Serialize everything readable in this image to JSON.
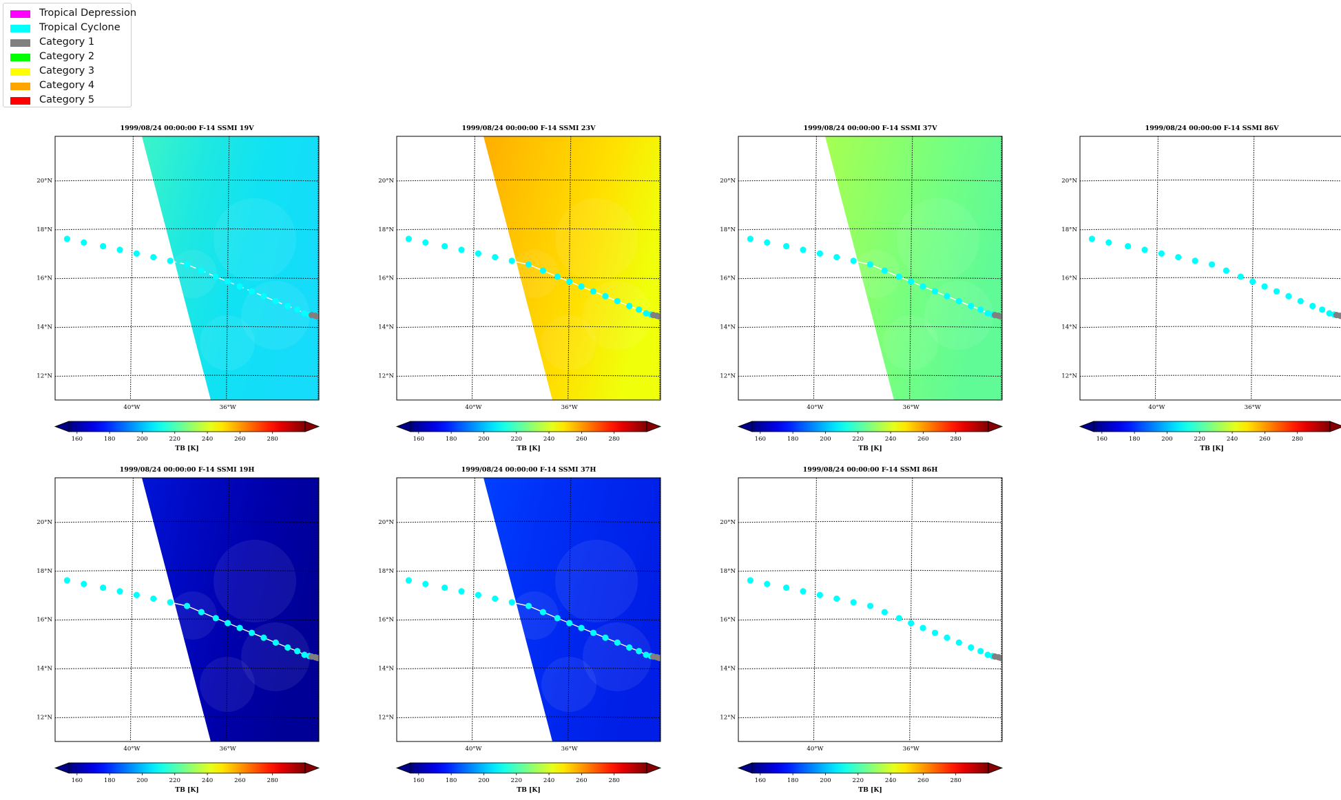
{
  "legend": {
    "items": [
      {
        "label": "Tropical Depression",
        "color": "#ff00ff"
      },
      {
        "label": "Tropical Cyclone",
        "color": "#00ffff"
      },
      {
        "label": "Category 1",
        "color": "#808080"
      },
      {
        "label": "Category 2",
        "color": "#00ff00"
      },
      {
        "label": "Category 3",
        "color": "#ffff00"
      },
      {
        "label": "Category 4",
        "color": "#ffa500"
      },
      {
        "label": "Category 5",
        "color": "#ff0000"
      }
    ]
  },
  "colorbar": {
    "label": "TB [K]",
    "colormap": "jet",
    "ticks": [
      160,
      180,
      200,
      220,
      240,
      260,
      280
    ],
    "range": [
      155,
      300
    ]
  },
  "chart_data": [
    {
      "type": "heatmap",
      "title": "1999/08/24 00:00:00  F-14 SSMI 19V",
      "channel": "19V",
      "data_style": "cyan",
      "approx_tb": 210
    },
    {
      "type": "heatmap",
      "title": "1999/08/24 00:00:00  F-14 SSMI 23V",
      "channel": "23V",
      "data_style": "orange",
      "approx_tb": 255
    },
    {
      "type": "heatmap",
      "title": "1999/08/24 00:00:00  F-14 SSMI 37V",
      "channel": "37V",
      "data_style": "green",
      "approx_tb": 230
    },
    {
      "type": "heatmap",
      "title": "1999/08/24 00:00:00  F-14 SSMI 86V",
      "channel": "86V",
      "data_style": "none",
      "approx_tb": null
    },
    {
      "type": "heatmap",
      "title": "1999/08/24 00:00:00  F-14 SSMI 19H",
      "channel": "19H",
      "data_style": "darkblue",
      "approx_tb": 170
    },
    {
      "type": "heatmap",
      "title": "1999/08/24 00:00:00  F-14 SSMI 37H",
      "channel": "37H",
      "data_style": "blue",
      "approx_tb": 180
    },
    {
      "type": "heatmap",
      "title": "1999/08/24 00:00:00  F-14 SSMI 86H",
      "channel": "86H",
      "data_style": "none",
      "approx_tb": null
    }
  ],
  "map": {
    "lat_labels": [
      "20°N",
      "18°N",
      "16°N",
      "14°N",
      "12°N"
    ],
    "lat_values": [
      20,
      18,
      16,
      14,
      12
    ],
    "lon_labels": [
      "40°W",
      "36°W"
    ],
    "lon_values": [
      -40,
      -36
    ],
    "lon_range": [
      -43.2,
      -32.2
    ],
    "lat_range": [
      11,
      21.8
    ]
  },
  "track": {
    "points": [
      {
        "lon": -42.7,
        "lat": 17.6,
        "category": "Tropical Cyclone"
      },
      {
        "lon": -42.0,
        "lat": 17.45,
        "category": "Tropical Cyclone"
      },
      {
        "lon": -41.2,
        "lat": 17.3,
        "category": "Tropical Cyclone"
      },
      {
        "lon": -40.5,
        "lat": 17.15,
        "category": "Tropical Cyclone"
      },
      {
        "lon": -39.8,
        "lat": 17.0,
        "category": "Tropical Cyclone"
      },
      {
        "lon": -39.1,
        "lat": 16.85,
        "category": "Tropical Cyclone"
      },
      {
        "lon": -38.4,
        "lat": 16.7,
        "category": "Tropical Cyclone"
      },
      {
        "lon": -37.7,
        "lat": 16.55,
        "category": "Tropical Cyclone"
      },
      {
        "lon": -37.1,
        "lat": 16.3,
        "category": "Tropical Cyclone"
      },
      {
        "lon": -36.5,
        "lat": 16.05,
        "category": "Tropical Cyclone"
      },
      {
        "lon": -36.0,
        "lat": 15.85,
        "category": "Tropical Cyclone"
      },
      {
        "lon": -35.5,
        "lat": 15.65,
        "category": "Tropical Cyclone"
      },
      {
        "lon": -35.0,
        "lat": 15.45,
        "category": "Tropical Cyclone"
      },
      {
        "lon": -34.5,
        "lat": 15.25,
        "category": "Tropical Cyclone"
      },
      {
        "lon": -34.0,
        "lat": 15.05,
        "category": "Tropical Cyclone"
      },
      {
        "lon": -33.5,
        "lat": 14.85,
        "category": "Tropical Cyclone"
      },
      {
        "lon": -33.1,
        "lat": 14.7,
        "category": "Tropical Cyclone"
      },
      {
        "lon": -32.8,
        "lat": 14.55,
        "category": "Tropical Cyclone"
      },
      {
        "lon": -32.6,
        "lat": 14.5,
        "category": "Tropical Cyclone"
      },
      {
        "lon": -32.5,
        "lat": 14.48,
        "category": "Category 1"
      },
      {
        "lon": -32.35,
        "lat": 14.45,
        "category": "Category 1"
      },
      {
        "lon": -32.25,
        "lat": 14.42,
        "category": "Category 1"
      }
    ]
  }
}
